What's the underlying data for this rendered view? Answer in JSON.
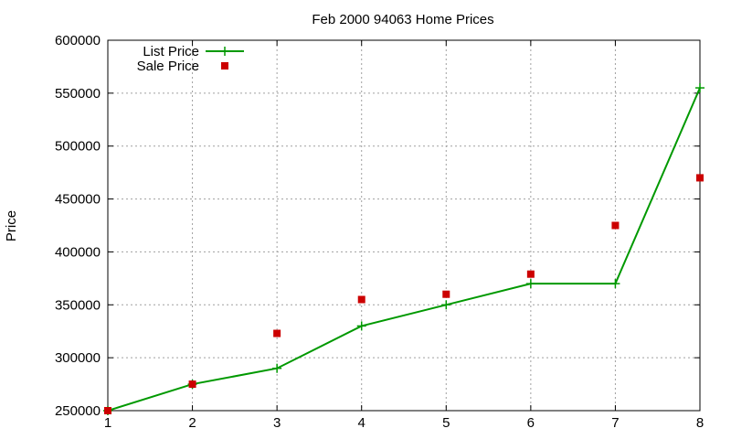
{
  "chart_data": {
    "type": "line",
    "title": "Feb 2000 94063 Home Prices",
    "xlabel": "",
    "ylabel": "Price",
    "x": [
      1,
      2,
      3,
      4,
      5,
      6,
      7,
      8
    ],
    "xlim": [
      1,
      8
    ],
    "ylim": [
      250000,
      600000
    ],
    "yticks": [
      250000,
      300000,
      350000,
      400000,
      450000,
      500000,
      550000,
      600000
    ],
    "grid": true,
    "legend_position": "top-left",
    "series": [
      {
        "name": "List Price",
        "style": "linespoints",
        "marker": "plus",
        "color": "#009900",
        "values": [
          250000,
          275000,
          290000,
          330000,
          350000,
          370000,
          370000,
          555000
        ]
      },
      {
        "name": "Sale Price",
        "style": "points",
        "marker": "square",
        "color": "#cc0000",
        "values": [
          250000,
          275000,
          323000,
          355000,
          360000,
          379000,
          425000,
          470000
        ]
      }
    ]
  }
}
